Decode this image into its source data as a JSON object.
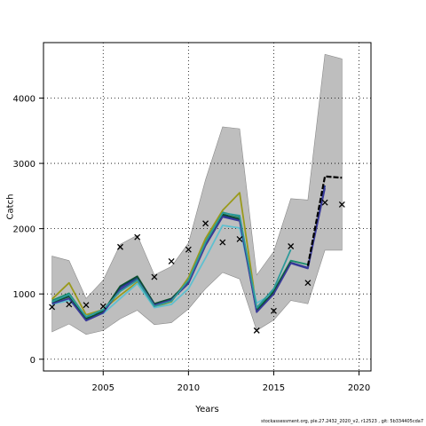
{
  "chart_data": {
    "type": "line",
    "xlabel": "Years",
    "ylabel": "Catch",
    "xlim": [
      2001.5,
      2020.7
    ],
    "ylim": [
      -180,
      4850
    ],
    "xticks": [
      2005,
      2010,
      2015,
      2020
    ],
    "yticks": [
      0,
      1000,
      2000,
      3000,
      4000
    ],
    "grid": true,
    "colors": {
      "band": "#bebebe",
      "band_edge": "#8a8a8a",
      "observed": "#000000",
      "series": [
        "#1f2f8f",
        "#1b8a6b",
        "#9a9a1c",
        "#5fc0d0",
        "#0b4f2f",
        "#3a3a9a",
        "#2d9a9a",
        "#000000"
      ]
    },
    "band": {
      "x": [
        2002,
        2003,
        2004,
        2005,
        2006,
        2007,
        2008,
        2009,
        2010,
        2011,
        2012,
        2013,
        2014,
        2015,
        2016,
        2017,
        2018,
        2019
      ],
      "upper": [
        1580,
        1510,
        930,
        1210,
        1760,
        1900,
        1290,
        1420,
        1780,
        2750,
        3560,
        3530,
        1290,
        1650,
        2460,
        2440,
        4670,
        4600
      ],
      "lower": [
        420,
        540,
        380,
        440,
        620,
        750,
        530,
        560,
        770,
        1080,
        1330,
        1230,
        440,
        600,
        900,
        850,
        1670,
        1670
      ]
    },
    "observed": {
      "x": [
        2002,
        2003,
        2004,
        2005,
        2006,
        2007,
        2008,
        2009,
        2010,
        2011,
        2012,
        2013,
        2014,
        2015,
        2016,
        2017,
        2018,
        2019
      ],
      "y": [
        800,
        840,
        830,
        810,
        1720,
        1870,
        1260,
        1500,
        1680,
        2080,
        1790,
        1840,
        440,
        740,
        1730,
        1170,
        2400,
        2370
      ]
    },
    "series": [
      {
        "x": [
          2002,
          2003,
          2004,
          2005,
          2006,
          2007,
          2008,
          2009,
          2010,
          2011,
          2012,
          2013,
          2014,
          2015,
          2016,
          2017,
          2018
        ],
        "values": [
          860,
          980,
          600,
          720,
          1100,
          1250,
          840,
          920,
          1180,
          1760,
          2200,
          2140,
          730,
          1020,
          1480,
          1400,
          2660
        ]
      },
      {
        "x": [
          2002,
          2003,
          2004,
          2005,
          2006,
          2007,
          2008,
          2009,
          2010,
          2011,
          2012,
          2013,
          2014,
          2015,
          2016,
          2017
        ],
        "values": [
          900,
          1010,
          640,
          740,
          1060,
          1230,
          820,
          900,
          1200,
          1800,
          2250,
          2180,
          760,
          1050,
          1510,
          1450
        ]
      },
      {
        "x": [
          2002,
          2003,
          2004,
          2005,
          2006,
          2007,
          2008,
          2009,
          2010,
          2011,
          2012,
          2013,
          2014
        ],
        "values": [
          920,
          1170,
          680,
          760,
          980,
          1180,
          800,
          880,
          1250,
          1850,
          2280,
          2550,
          780
        ]
      },
      {
        "x": [
          2002,
          2003,
          2004,
          2005,
          2006,
          2007,
          2008,
          2009,
          2010,
          2011,
          2012,
          2013,
          2014,
          2015
        ],
        "values": [
          840,
          900,
          660,
          700,
          930,
          1160,
          790,
          840,
          1080,
          1550,
          2050,
          2010,
          860,
          1010
        ]
      },
      {
        "x": [
          2002,
          2003,
          2004,
          2005,
          2006,
          2007,
          2008,
          2009,
          2010,
          2011,
          2012,
          2013,
          2014,
          2015,
          2016
        ],
        "values": [
          870,
          960,
          620,
          730,
          1120,
          1270,
          850,
          930,
          1190,
          1770,
          2220,
          2150,
          740,
          1030,
          1490
        ]
      },
      {
        "x": [
          2002,
          2003,
          2004,
          2005,
          2006,
          2007,
          2008,
          2009,
          2010,
          2011,
          2012,
          2013,
          2014,
          2015,
          2016,
          2017,
          2018
        ],
        "values": [
          850,
          930,
          590,
          710,
          1070,
          1220,
          830,
          910,
          1160,
          1740,
          2180,
          2120,
          720,
          1000,
          1470,
          1390,
          2620
        ]
      },
      {
        "x": [
          2002,
          2003,
          2004,
          2005,
          2006,
          2007,
          2008,
          2009,
          2010,
          2011,
          2012,
          2013,
          2014,
          2015,
          2016
        ],
        "values": [
          880,
          990,
          650,
          760,
          1040,
          1210,
          810,
          890,
          1210,
          1790,
          2240,
          2200,
          790,
          1080,
          1680
        ]
      },
      {
        "x": [
          2017,
          2018,
          2019
        ],
        "values": [
          1430,
          2800,
          2780
        ]
      }
    ]
  },
  "footer": "stockassessment.org, ple.27.2432_2020_v2, r12523 , git: 5b334405cda7"
}
